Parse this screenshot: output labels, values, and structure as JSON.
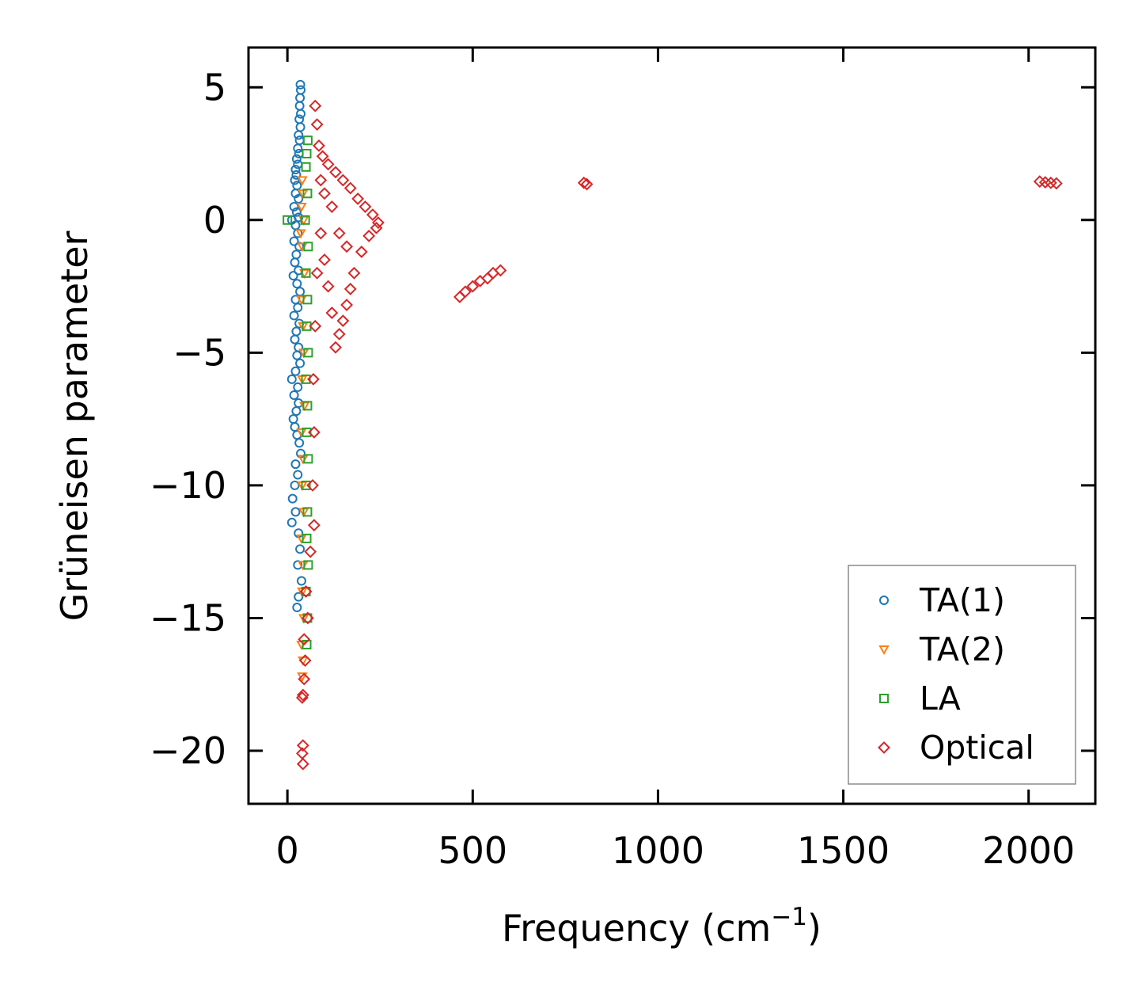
{
  "chart_data": {
    "type": "scatter",
    "xlabel": "Frequency (cm",
    "xlabel_sup": "−1",
    "xlabel_close": ")",
    "ylabel": "Grüneisen parameter",
    "xlim": [
      -105,
      2180
    ],
    "ylim": [
      -22,
      6.5
    ],
    "xticks": [
      0,
      500,
      1000,
      1500,
      2000
    ],
    "xtick_labels": [
      "0",
      "500",
      "1000",
      "1500",
      "2000"
    ],
    "yticks": [
      5,
      0,
      -5,
      -10,
      -15,
      -20
    ],
    "ytick_labels": [
      "5",
      "0",
      "−5",
      "−10",
      "−15",
      "−20"
    ],
    "legend_position": "lower-right",
    "series": [
      {
        "name": "TA(1)",
        "marker": "circle",
        "color": "#1f77b4",
        "points": [
          [
            35,
            5.1
          ],
          [
            36,
            4.9
          ],
          [
            34,
            4.6
          ],
          [
            33,
            4.3
          ],
          [
            36,
            4.0
          ],
          [
            32,
            3.8
          ],
          [
            35,
            3.5
          ],
          [
            30,
            3.2
          ],
          [
            33,
            3.0
          ],
          [
            28,
            2.7
          ],
          [
            31,
            2.5
          ],
          [
            25,
            2.3
          ],
          [
            28,
            2.1
          ],
          [
            22,
            1.9
          ],
          [
            24,
            1.7
          ],
          [
            20,
            1.5
          ],
          [
            26,
            1.3
          ],
          [
            22,
            1.0
          ],
          [
            30,
            0.8
          ],
          [
            18,
            0.5
          ],
          [
            25,
            0.3
          ],
          [
            30,
            0.1
          ],
          [
            12,
            0.0
          ],
          [
            22,
            -0.2
          ],
          [
            28,
            -0.5
          ],
          [
            18,
            -0.8
          ],
          [
            32,
            -1.0
          ],
          [
            24,
            -1.3
          ],
          [
            20,
            -1.6
          ],
          [
            30,
            -1.9
          ],
          [
            16,
            -2.1
          ],
          [
            26,
            -2.4
          ],
          [
            34,
            -2.7
          ],
          [
            22,
            -3.0
          ],
          [
            28,
            -3.3
          ],
          [
            18,
            -3.6
          ],
          [
            32,
            -3.9
          ],
          [
            24,
            -4.2
          ],
          [
            20,
            -4.5
          ],
          [
            30,
            -4.8
          ],
          [
            26,
            -5.1
          ],
          [
            34,
            -5.4
          ],
          [
            22,
            -5.7
          ],
          [
            12,
            -6.0
          ],
          [
            28,
            -6.3
          ],
          [
            18,
            -6.6
          ],
          [
            30,
            -6.9
          ],
          [
            24,
            -7.2
          ],
          [
            16,
            -7.5
          ],
          [
            20,
            -7.8
          ],
          [
            26,
            -8.1
          ],
          [
            32,
            -8.4
          ],
          [
            36,
            -8.8
          ],
          [
            22,
            -9.2
          ],
          [
            28,
            -9.6
          ],
          [
            20,
            -10.0
          ],
          [
            14,
            -10.5
          ],
          [
            22,
            -11.0
          ],
          [
            12,
            -11.4
          ],
          [
            30,
            -11.8
          ],
          [
            34,
            -12.4
          ],
          [
            28,
            -13.0
          ],
          [
            38,
            -13.6
          ],
          [
            30,
            -14.2
          ],
          [
            26,
            -14.6
          ]
        ]
      },
      {
        "name": "TA(2)",
        "marker": "triangle-down",
        "color": "#ff7f0e",
        "points": [
          [
            40,
            1.5
          ],
          [
            42,
            1.0
          ],
          [
            38,
            0.5
          ],
          [
            44,
            0.0
          ],
          [
            36,
            -0.5
          ],
          [
            40,
            -1.0
          ],
          [
            46,
            -2.0
          ],
          [
            38,
            -3.0
          ],
          [
            42,
            -4.0
          ],
          [
            44,
            -5.0
          ],
          [
            40,
            -6.0
          ],
          [
            46,
            -7.0
          ],
          [
            38,
            -8.0
          ],
          [
            42,
            -9.0
          ],
          [
            40,
            -10.0
          ],
          [
            44,
            -11.0
          ],
          [
            38,
            -12.0
          ],
          [
            42,
            -13.0
          ],
          [
            40,
            -14.0
          ],
          [
            44,
            -15.0
          ],
          [
            38,
            -16.0
          ],
          [
            42,
            -16.6
          ],
          [
            40,
            -17.2
          ]
        ]
      },
      {
        "name": "LA",
        "marker": "square",
        "color": "#2ca02c",
        "points": [
          [
            0,
            0.0
          ],
          [
            55,
            3.0
          ],
          [
            52,
            2.5
          ],
          [
            50,
            2.0
          ],
          [
            54,
            1.0
          ],
          [
            48,
            0.0
          ],
          [
            56,
            -1.0
          ],
          [
            50,
            -2.0
          ],
          [
            54,
            -3.0
          ],
          [
            52,
            -4.0
          ],
          [
            56,
            -5.0
          ],
          [
            50,
            -6.0
          ],
          [
            54,
            -7.0
          ],
          [
            52,
            -8.0
          ],
          [
            56,
            -9.0
          ],
          [
            50,
            -10.0
          ],
          [
            54,
            -11.0
          ],
          [
            52,
            -12.0
          ],
          [
            56,
            -13.0
          ],
          [
            50,
            -14.0
          ],
          [
            54,
            -15.0
          ],
          [
            52,
            -16.0
          ]
        ]
      },
      {
        "name": "Optical",
        "marker": "diamond",
        "color": "#d62728",
        "points": [
          [
            75,
            4.3
          ],
          [
            80,
            3.6
          ],
          [
            85,
            2.8
          ],
          [
            95,
            2.4
          ],
          [
            110,
            2.1
          ],
          [
            130,
            1.8
          ],
          [
            150,
            1.5
          ],
          [
            170,
            1.2
          ],
          [
            190,
            0.8
          ],
          [
            210,
            0.5
          ],
          [
            230,
            0.2
          ],
          [
            245,
            -0.1
          ],
          [
            240,
            -0.3
          ],
          [
            220,
            -0.6
          ],
          [
            200,
            -1.2
          ],
          [
            180,
            -2.0
          ],
          [
            170,
            -2.6
          ],
          [
            160,
            -3.2
          ],
          [
            150,
            -3.8
          ],
          [
            140,
            -4.3
          ],
          [
            130,
            -4.8
          ],
          [
            120,
            -3.5
          ],
          [
            110,
            -2.5
          ],
          [
            100,
            -1.5
          ],
          [
            90,
            -0.5
          ],
          [
            120,
            0.5
          ],
          [
            140,
            -0.5
          ],
          [
            160,
            -1.0
          ],
          [
            100,
            1.0
          ],
          [
            90,
            1.5
          ],
          [
            80,
            -2.0
          ],
          [
            75,
            -4.0
          ],
          [
            70,
            -6.0
          ],
          [
            72,
            -8.0
          ],
          [
            68,
            -10.0
          ],
          [
            72,
            -11.5
          ],
          [
            62,
            -12.5
          ],
          [
            50,
            -14.0
          ],
          [
            55,
            -15.0
          ],
          [
            45,
            -15.8
          ],
          [
            48,
            -16.6
          ],
          [
            45,
            -17.3
          ],
          [
            42,
            -17.9
          ],
          [
            40,
            -18.0
          ],
          [
            42,
            -19.8
          ],
          [
            40,
            -20.1
          ],
          [
            42,
            -20.5
          ],
          [
            465,
            -2.9
          ],
          [
            480,
            -2.7
          ],
          [
            500,
            -2.5
          ],
          [
            520,
            -2.3
          ],
          [
            540,
            -2.2
          ],
          [
            555,
            -2.0
          ],
          [
            575,
            -1.9
          ],
          [
            800,
            1.4
          ],
          [
            808,
            1.35
          ],
          [
            2030,
            1.45
          ],
          [
            2045,
            1.42
          ],
          [
            2060,
            1.4
          ],
          [
            2075,
            1.38
          ]
        ]
      }
    ]
  }
}
